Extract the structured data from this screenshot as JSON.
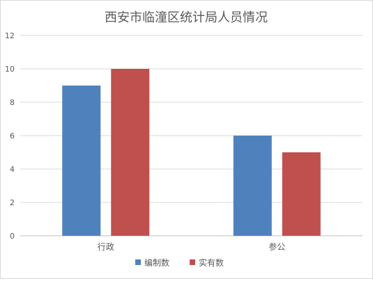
{
  "chart_data": {
    "type": "bar",
    "title": "西安市临潼区统计局人员情况",
    "categories": [
      "行政",
      "参公"
    ],
    "series": [
      {
        "name": "编制数",
        "values": [
          9,
          6
        ],
        "color": "#4F81BD"
      },
      {
        "name": "实有数",
        "values": [
          10,
          5
        ],
        "color": "#C0504D"
      }
    ],
    "ylim": [
      0,
      12
    ],
    "yticks": [
      0,
      2,
      4,
      6,
      8,
      10,
      12
    ],
    "grid": true,
    "legend_position": "bottom",
    "xlabel": "",
    "ylabel": ""
  }
}
